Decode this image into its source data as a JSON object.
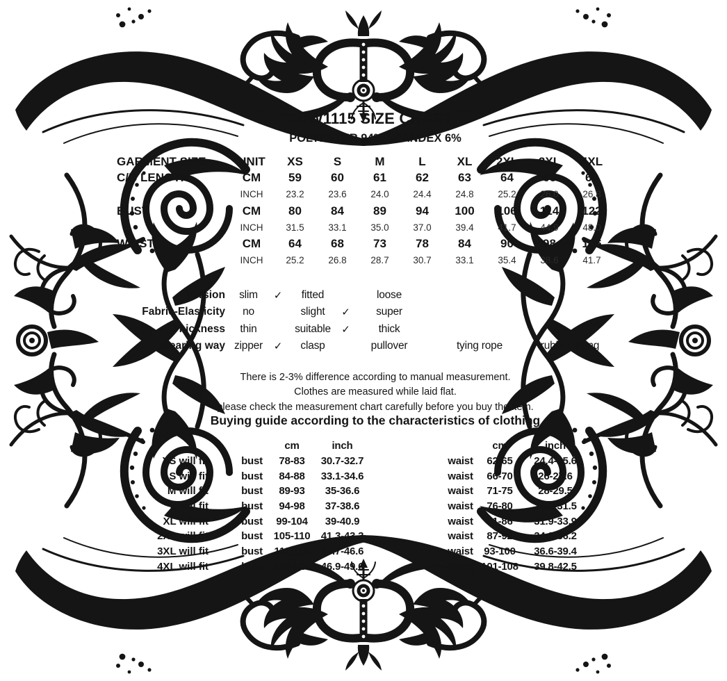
{
  "page": {
    "title": "DW1115 SIZE CHART",
    "subtitle": "POLYESTER 94% SPANDEX 6%"
  },
  "colors": {
    "ink": "#141414",
    "ornament": "#151515"
  },
  "icons": {
    "ornamental_border": "damask-flourish-border",
    "check": "check-mark-icon"
  },
  "size_table": {
    "header": [
      "GARMENT SIZE",
      "UNIT",
      "XS",
      "S",
      "M",
      "L",
      "XL",
      "2XL",
      "3XL",
      "4XL"
    ],
    "rows": [
      {
        "label": "C/B LENGTH",
        "unit": "CM",
        "bold": true,
        "values": [
          "59",
          "60",
          "61",
          "62",
          "63",
          "64",
          "66",
          "68"
        ]
      },
      {
        "label": "",
        "unit": "INCH",
        "bold": false,
        "values": [
          "23.2",
          "23.6",
          "24.0",
          "24.4",
          "24.8",
          "25.2",
          "26.0",
          "26.8"
        ]
      },
      {
        "label": "BUST",
        "unit": "CM",
        "bold": true,
        "values": [
          "80",
          "84",
          "89",
          "94",
          "100",
          "106",
          "114",
          "122"
        ]
      },
      {
        "label": "",
        "unit": "INCH",
        "bold": false,
        "values": [
          "31.5",
          "33.1",
          "35.0",
          "37.0",
          "39.4",
          "41.7",
          "44.9",
          "48.0"
        ]
      },
      {
        "label": "WAIST",
        "unit": "CM",
        "bold": true,
        "values": [
          "64",
          "68",
          "73",
          "78",
          "84",
          "90",
          "98",
          "106"
        ]
      },
      {
        "label": "",
        "unit": "INCH",
        "bold": false,
        "values": [
          "25.2",
          "26.8",
          "28.7",
          "30.7",
          "33.1",
          "35.4",
          "38.6",
          "41.7"
        ]
      }
    ]
  },
  "attributes": {
    "check_glyph": "✓",
    "rows": [
      {
        "label": "Version",
        "options": [
          {
            "text": "slim",
            "checked": true
          },
          {
            "text": "fitted",
            "checked": false
          },
          {
            "text": "loose",
            "checked": false
          }
        ]
      },
      {
        "label": "Fabric-Elasticity",
        "options": [
          {
            "text": "no",
            "checked": false
          },
          {
            "text": "slight",
            "checked": true
          },
          {
            "text": "super",
            "checked": false
          }
        ]
      },
      {
        "label": "Thickness",
        "options": [
          {
            "text": "thin",
            "checked": false
          },
          {
            "text": "suitable",
            "checked": true
          },
          {
            "text": "thick",
            "checked": false
          }
        ]
      },
      {
        "label": "wearing way",
        "options": [
          {
            "text": "zipper",
            "checked": true
          },
          {
            "text": "clasp",
            "checked": false
          },
          {
            "text": "pullover",
            "checked": false
          },
          {
            "text": "tying rope",
            "checked": false
          },
          {
            "text": "rubber string",
            "checked": false
          }
        ]
      }
    ]
  },
  "notes": [
    "There is 2-3% difference according to manual measurement.",
    "Clothes are measured while laid flat.",
    "please check the measurement chart carefully before you buy the item."
  ],
  "buying_guide": {
    "heading": "Buying guide according to the characteristics of clothing",
    "col_headers": {
      "cm": "cm",
      "inch": "inch"
    },
    "rows": [
      {
        "size": "XS will fit",
        "bust_label": "bust",
        "bust_cm": "78-83",
        "bust_inch": "30.7-32.7",
        "waist_label": "waist",
        "waist_cm": "62-65",
        "waist_inch": "24.4-25.6"
      },
      {
        "size": "S will fit",
        "bust_label": "bust",
        "bust_cm": "84-88",
        "bust_inch": "33.1-34.6",
        "waist_label": "waist",
        "waist_cm": "66-70",
        "waist_inch": "26-27.6"
      },
      {
        "size": "M will fit",
        "bust_label": "bust",
        "bust_cm": "89-93",
        "bust_inch": "35-36.6",
        "waist_label": "waist",
        "waist_cm": "71-75",
        "waist_inch": "28-29.5"
      },
      {
        "size": "L will fit",
        "bust_label": "bust",
        "bust_cm": "94-98",
        "bust_inch": "37-38.6",
        "waist_label": "waist",
        "waist_cm": "76-80",
        "waist_inch": "29.9-31.5"
      },
      {
        "size": "XL will fit",
        "bust_label": "bust",
        "bust_cm": "99-104",
        "bust_inch": "39-40.9",
        "waist_label": "waist",
        "waist_cm": "81-86",
        "waist_inch": "31.9-33.9"
      },
      {
        "size": "2XL will fit",
        "bust_label": "bust",
        "bust_cm": "105-110",
        "bust_inch": "41.3-43.3",
        "waist_label": "waist",
        "waist_cm": "87-92",
        "waist_inch": "34.3-36.2"
      },
      {
        "size": "3XL will fit",
        "bust_label": "bust",
        "bust_cm": "111-118",
        "bust_inch": "43.7-46.6",
        "waist_label": "waist",
        "waist_cm": "93-100",
        "waist_inch": "36.6-39.4"
      },
      {
        "size": "4XL will fit",
        "bust_label": "bust",
        "bust_cm": "119-126",
        "bust_inch": "46.9-49.6",
        "waist_label": "waist",
        "waist_cm": "101-108",
        "waist_inch": "39.8-42.5"
      }
    ]
  }
}
